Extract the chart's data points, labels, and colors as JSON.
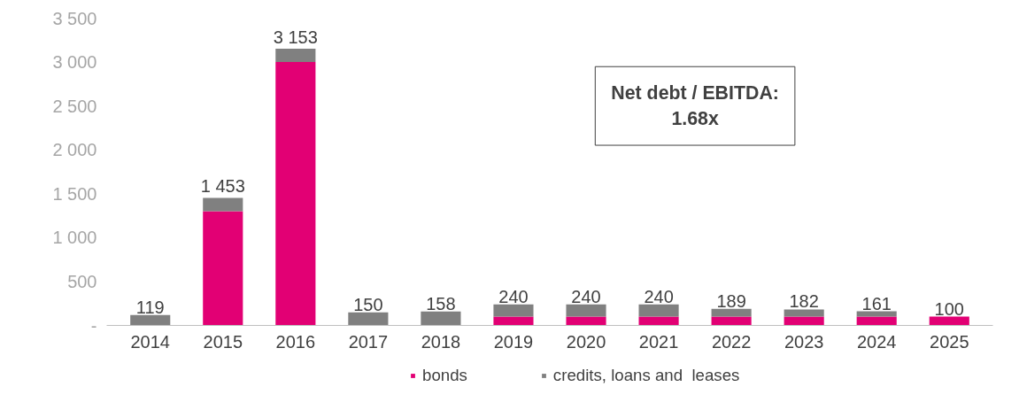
{
  "chart_data": {
    "type": "bar",
    "stacked": true,
    "categories": [
      "2014",
      "2015",
      "2016",
      "2017",
      "2018",
      "2019",
      "2020",
      "2021",
      "2022",
      "2023",
      "2024",
      "2025"
    ],
    "series": [
      {
        "name": "bonds",
        "color": "#e20074",
        "values": [
          0,
          1300,
          3000,
          0,
          0,
          100,
          100,
          100,
          100,
          100,
          100,
          100
        ]
      },
      {
        "name": "credits, loans and  leases",
        "color": "#808080",
        "values": [
          119,
          153,
          153,
          150,
          158,
          140,
          140,
          140,
          89,
          82,
          61,
          0
        ]
      }
    ],
    "totals": [
      "119",
      "1 453",
      "3 153",
      "150",
      "158",
      "240",
      "240",
      "240",
      "189",
      "182",
      "161",
      "100"
    ],
    "ylim": [
      0,
      3500
    ],
    "yticks": [
      {
        "value": 0,
        "label": "-"
      },
      500,
      {
        "value": 1000,
        "label": "1 000"
      },
      {
        "value": 1500,
        "label": "1 500"
      },
      {
        "value": 2000,
        "label": "2 000"
      },
      {
        "value": 2500,
        "label": "2 500"
      },
      {
        "value": 3000,
        "label": "3 000"
      },
      {
        "value": 3500,
        "label": "3 500"
      }
    ],
    "annotations": [
      "Net debt / EBITDA:\n1.68x"
    ],
    "grid": false,
    "legend": "bottom"
  }
}
